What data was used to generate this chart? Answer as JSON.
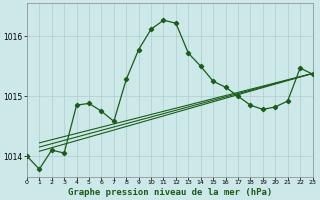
{
  "title": "Graphe pression niveau de la mer (hPa)",
  "background_color": "#cce8e8",
  "plot_bg_color": "#cce8e8",
  "grid_color": "#b0cccc",
  "line_color": "#1a5c1a",
  "xlim": [
    0,
    23
  ],
  "ylim": [
    1013.65,
    1016.55
  ],
  "yticks": [
    1014,
    1015,
    1016
  ],
  "xtick_labels": [
    "0",
    "1",
    "2",
    "3",
    "4",
    "5",
    "6",
    "7",
    "8",
    "9",
    "10",
    "11",
    "12",
    "13",
    "14",
    "15",
    "16",
    "17",
    "18",
    "19",
    "20",
    "21",
    "22",
    "23"
  ],
  "series1_x": [
    0,
    1,
    2,
    3,
    4,
    5,
    6,
    7,
    8,
    9,
    10,
    11,
    12,
    13,
    14,
    15,
    16,
    17,
    18,
    19,
    20,
    21,
    22,
    23
  ],
  "series1_y": [
    1014.0,
    1013.78,
    1014.1,
    1014.05,
    1014.85,
    1014.88,
    1014.75,
    1014.58,
    1015.28,
    1015.78,
    1016.12,
    1016.27,
    1016.22,
    1015.72,
    1015.5,
    1015.25,
    1015.15,
    1015.0,
    1014.85,
    1014.78,
    1014.82,
    1014.92,
    1015.47,
    1015.37
  ],
  "series2_x": [
    1,
    23
  ],
  "series2_y": [
    1014.08,
    1015.38
  ],
  "series3_x": [
    1,
    23
  ],
  "series3_y": [
    1014.15,
    1015.38
  ],
  "series4_x": [
    1,
    23
  ],
  "series4_y": [
    1014.22,
    1015.38
  ],
  "ylabel_fontsize": 6,
  "xlabel_fontsize": 6.5
}
